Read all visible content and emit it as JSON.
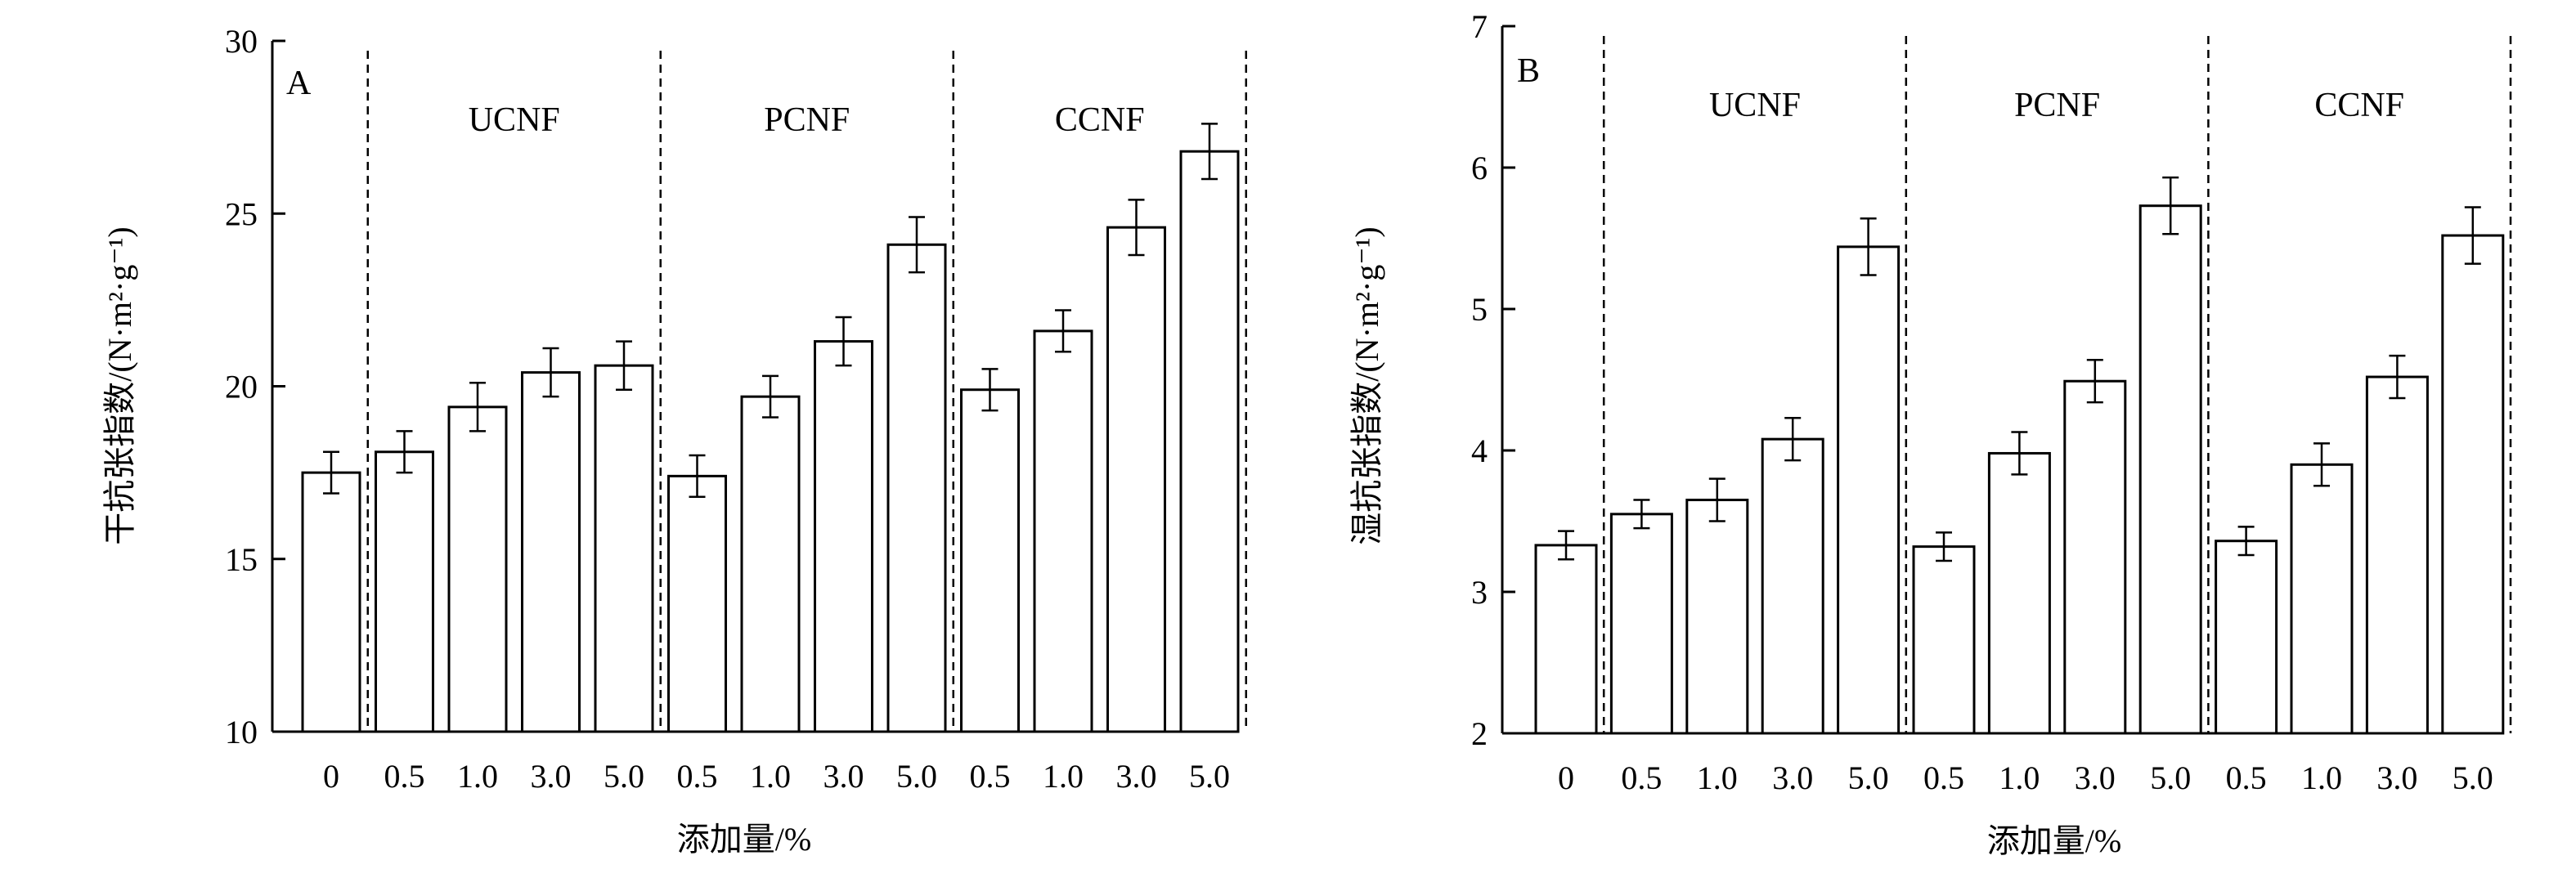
{
  "chart_data": [
    {
      "type": "bar",
      "panel_label": "A",
      "ylabel": "干抗张指数/(N·m²·g⁻¹)",
      "xlabel": "添加量/%",
      "ylim": [
        10,
        30
      ],
      "yticks": [
        10,
        15,
        20,
        25,
        30
      ],
      "groups": [
        "",
        "UCNF",
        "PCNF",
        "CCNF"
      ],
      "categories": [
        "0",
        "0.5",
        "1.0",
        "3.0",
        "5.0",
        "0.5",
        "1.0",
        "3.0",
        "5.0",
        "0.5",
        "1.0",
        "3.0",
        "5.0"
      ],
      "values": [
        17.5,
        18.1,
        19.4,
        20.4,
        20.6,
        17.4,
        19.7,
        21.3,
        24.1,
        19.9,
        21.6,
        24.6,
        26.8
      ],
      "errors": [
        0.6,
        0.6,
        0.7,
        0.7,
        0.7,
        0.6,
        0.6,
        0.7,
        0.8,
        0.6,
        0.6,
        0.8,
        0.8
      ],
      "group_sizes": [
        1,
        4,
        4,
        4
      ]
    },
    {
      "type": "bar",
      "panel_label": "B",
      "ylabel": "湿抗张指数/(N·m²·g⁻¹)",
      "xlabel": "添加量/%",
      "ylim": [
        2,
        7
      ],
      "yticks": [
        2,
        3,
        4,
        5,
        6,
        7
      ],
      "groups": [
        "",
        "UCNF",
        "PCNF",
        "CCNF"
      ],
      "categories": [
        "0",
        "0.5",
        "1.0",
        "3.0",
        "5.0",
        "0.5",
        "1.0",
        "3.0",
        "5.0",
        "0.5",
        "1.0",
        "3.0",
        "5.0"
      ],
      "values": [
        3.33,
        3.55,
        3.65,
        4.08,
        5.44,
        3.32,
        3.98,
        4.49,
        5.73,
        3.36,
        3.9,
        4.52,
        5.52
      ],
      "errors": [
        0.1,
        0.1,
        0.15,
        0.15,
        0.2,
        0.1,
        0.15,
        0.15,
        0.2,
        0.1,
        0.15,
        0.15,
        0.2
      ],
      "group_sizes": [
        1,
        4,
        4,
        4
      ]
    }
  ]
}
